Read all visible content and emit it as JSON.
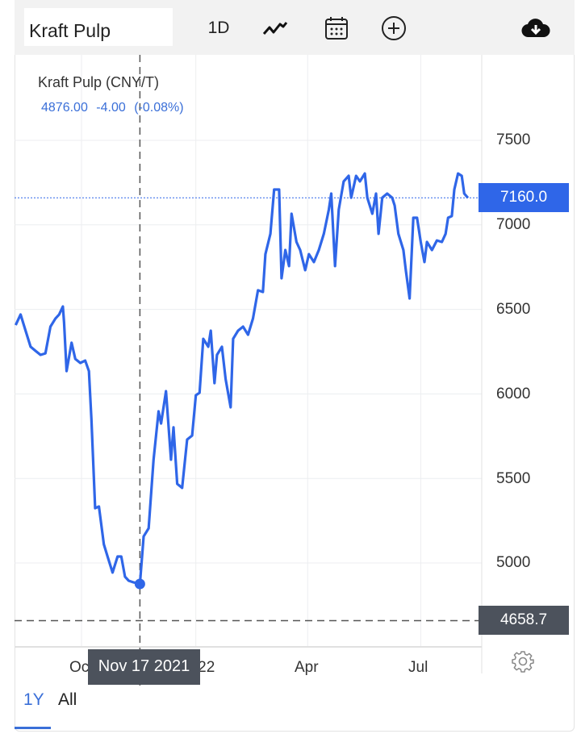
{
  "header": {
    "name": "Kraft Pulp",
    "interval": "1D",
    "icons": [
      "line-chart-icon",
      "calendar-icon",
      "add-circle-icon",
      "cloud-download-icon"
    ]
  },
  "legend": {
    "title": "Kraft Pulp (CNY/T)",
    "last": "4876.00",
    "change": "-4.00",
    "change_pct": "(-0.08%)"
  },
  "crosshair": {
    "date_label": "Nov 17 2021",
    "price_label": "4658.7"
  },
  "current_price_label": "7160.0",
  "colors": {
    "line": "#2f66e8",
    "price_box": "#2f66e8",
    "crosshair_box": "#4c525c",
    "legend_text": "#3a6fd8"
  },
  "tabs": [
    {
      "label": "1Y",
      "active": true
    },
    {
      "label": "All",
      "active": false
    }
  ],
  "chart_data": {
    "type": "line",
    "title": "Kraft Pulp (CNY/T)",
    "y_ticks": [
      "7500",
      "7000",
      "6500",
      "6000",
      "5500",
      "5000"
    ],
    "x_ticks": [
      "Oct",
      "2022",
      "Apr",
      "Jul"
    ],
    "ylim": [
      4500,
      7750
    ],
    "grid": true,
    "y_axis": "right",
    "series": [
      {
        "name": "Kraft Pulp",
        "points": [
          [
            "2021-08-09",
            6407
          ],
          [
            "2021-08-13",
            6470
          ],
          [
            "2021-08-17",
            6374
          ],
          [
            "2021-08-21",
            6279
          ],
          [
            "2021-08-25",
            6255
          ],
          [
            "2021-08-29",
            6231
          ],
          [
            "2021-09-02",
            6240
          ],
          [
            "2021-09-06",
            6398
          ],
          [
            "2021-09-10",
            6446
          ],
          [
            "2021-09-13",
            6470
          ],
          [
            "2021-09-16",
            6517
          ],
          [
            "2021-09-17",
            6422
          ],
          [
            "2021-09-19",
            6135
          ],
          [
            "2021-09-23",
            6303
          ],
          [
            "2021-09-26",
            6207
          ],
          [
            "2021-09-30",
            6183
          ],
          [
            "2021-10-04",
            6197
          ],
          [
            "2021-10-07",
            6135
          ],
          [
            "2021-10-09",
            5849
          ],
          [
            "2021-10-12",
            5324
          ],
          [
            "2021-10-15",
            5334
          ],
          [
            "2021-10-19",
            5110
          ],
          [
            "2021-10-22",
            5038
          ],
          [
            "2021-10-26",
            4943
          ],
          [
            "2021-10-30",
            5038
          ],
          [
            "2021-11-02",
            5038
          ],
          [
            "2021-11-05",
            4919
          ],
          [
            "2021-11-08",
            4895
          ],
          [
            "2021-11-12",
            4885
          ],
          [
            "2021-11-17",
            4876
          ],
          [
            "2021-11-20",
            5157
          ],
          [
            "2021-11-24",
            5205
          ],
          [
            "2021-11-28",
            5611
          ],
          [
            "2021-12-02",
            5897
          ],
          [
            "2021-12-04",
            5825
          ],
          [
            "2021-12-08",
            6016
          ],
          [
            "2021-12-12",
            5611
          ],
          [
            "2021-12-14",
            5802
          ],
          [
            "2021-12-17",
            5468
          ],
          [
            "2021-12-21",
            5444
          ],
          [
            "2021-12-25",
            5730
          ],
          [
            "2021-12-29",
            5754
          ],
          [
            "2022-01-01",
            5992
          ],
          [
            "2022-01-04",
            6007
          ],
          [
            "2022-01-07",
            6326
          ],
          [
            "2022-01-11",
            6279
          ],
          [
            "2022-01-13",
            6374
          ],
          [
            "2022-01-16",
            6064
          ],
          [
            "2022-01-18",
            6231
          ],
          [
            "2022-01-22",
            6279
          ],
          [
            "2022-01-25",
            6088
          ],
          [
            "2022-01-29",
            5921
          ],
          [
            "2022-01-31",
            6326
          ],
          [
            "2022-02-04",
            6374
          ],
          [
            "2022-02-08",
            6398
          ],
          [
            "2022-02-12",
            6350
          ],
          [
            "2022-02-16",
            6446
          ],
          [
            "2022-02-20",
            6613
          ],
          [
            "2022-02-24",
            6603
          ],
          [
            "2022-02-26",
            6827
          ],
          [
            "2022-03-02",
            6947
          ],
          [
            "2022-03-05",
            7209
          ],
          [
            "2022-03-09",
            7209
          ],
          [
            "2022-03-11",
            6684
          ],
          [
            "2022-03-14",
            6851
          ],
          [
            "2022-03-17",
            6756
          ],
          [
            "2022-03-19",
            7066
          ],
          [
            "2022-03-23",
            6899
          ],
          [
            "2022-03-26",
            6851
          ],
          [
            "2022-03-30",
            6732
          ],
          [
            "2022-04-02",
            6827
          ],
          [
            "2022-04-06",
            6780
          ],
          [
            "2022-04-10",
            6851
          ],
          [
            "2022-04-14",
            6947
          ],
          [
            "2022-04-18",
            7090
          ],
          [
            "2022-04-20",
            7185
          ],
          [
            "2022-04-23",
            6756
          ],
          [
            "2022-04-26",
            7090
          ],
          [
            "2022-04-30",
            7257
          ],
          [
            "2022-05-04",
            7290
          ],
          [
            "2022-05-06",
            7161
          ],
          [
            "2022-05-10",
            7290
          ],
          [
            "2022-05-13",
            7257
          ],
          [
            "2022-05-17",
            7304
          ],
          [
            "2022-05-19",
            7161
          ],
          [
            "2022-05-23",
            7066
          ],
          [
            "2022-05-26",
            7185
          ],
          [
            "2022-05-28",
            6947
          ],
          [
            "2022-05-31",
            7161
          ],
          [
            "2022-06-04",
            7185
          ],
          [
            "2022-06-08",
            7161
          ],
          [
            "2022-06-10",
            7114
          ],
          [
            "2022-06-13",
            6947
          ],
          [
            "2022-06-17",
            6851
          ],
          [
            "2022-06-19",
            6732
          ],
          [
            "2022-06-22",
            6565
          ],
          [
            "2022-06-25",
            7042
          ],
          [
            "2022-06-28",
            7042
          ],
          [
            "2022-07-01",
            6899
          ],
          [
            "2022-07-04",
            6780
          ],
          [
            "2022-07-06",
            6899
          ],
          [
            "2022-07-10",
            6851
          ],
          [
            "2022-07-14",
            6908
          ],
          [
            "2022-07-18",
            6899
          ],
          [
            "2022-07-21",
            6947
          ],
          [
            "2022-07-23",
            7042
          ],
          [
            "2022-07-26",
            7052
          ],
          [
            "2022-07-28",
            7209
          ],
          [
            "2022-07-31",
            7304
          ],
          [
            "2022-08-03",
            7290
          ],
          [
            "2022-08-05",
            7185
          ],
          [
            "2022-08-08",
            7160
          ]
        ]
      }
    ],
    "highlight": {
      "date": "2021-11-17",
      "value": 4876
    },
    "crosshair_value": 4658.7,
    "last_value": 7160.0
  }
}
